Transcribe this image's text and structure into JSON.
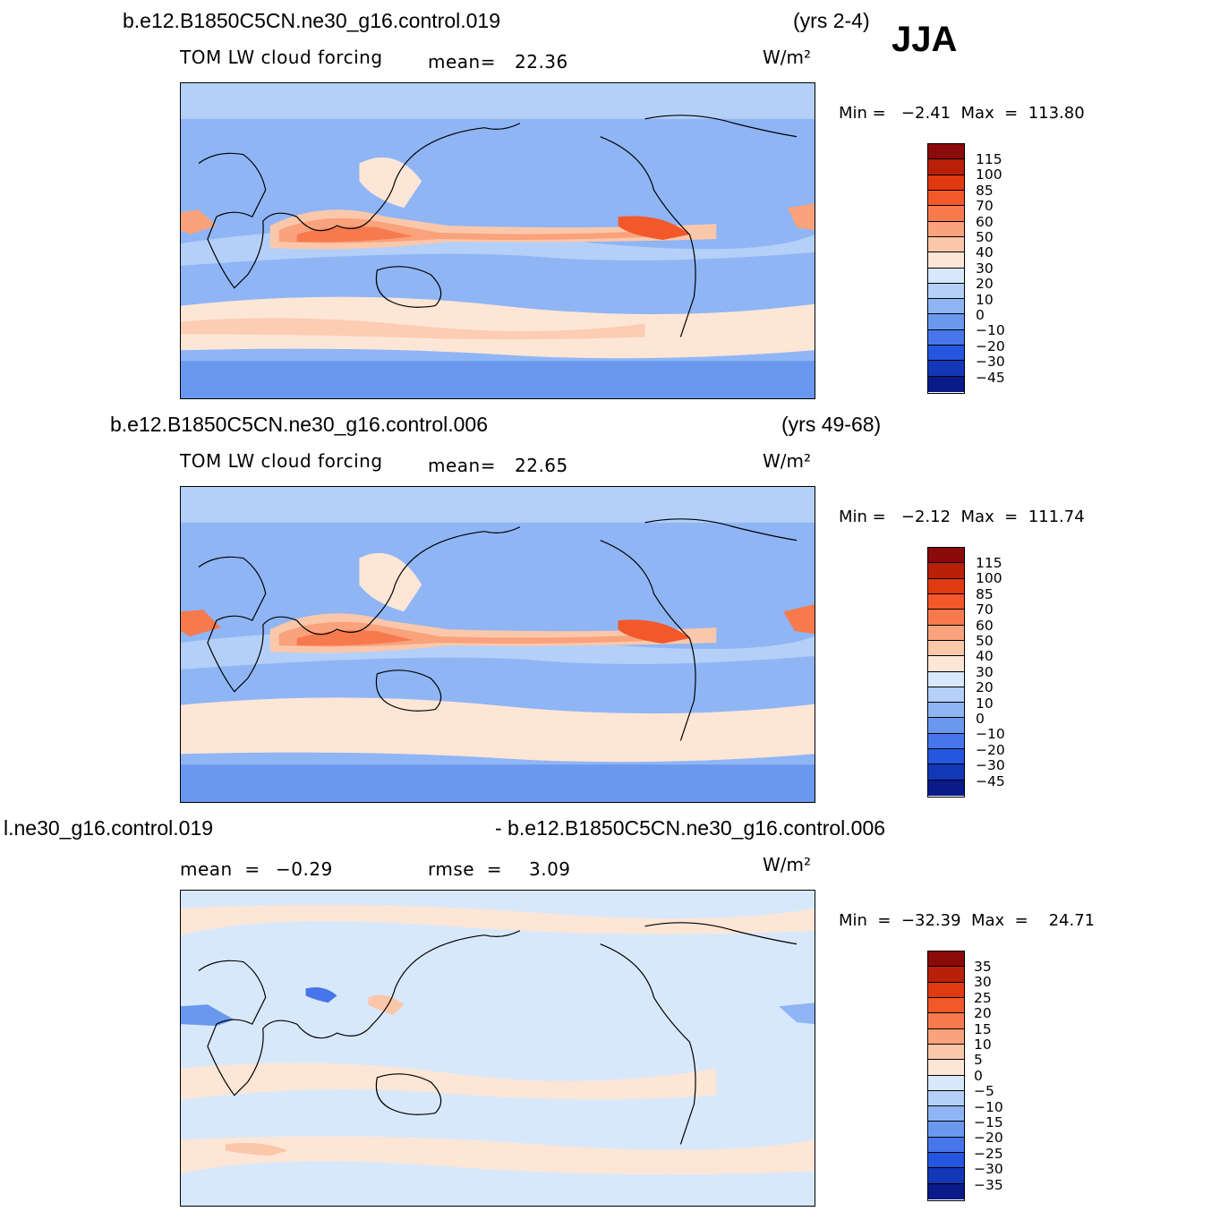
{
  "season": "JJA",
  "panels": [
    {
      "id": "test",
      "title": "b.e12.B1850C5CN.ne30_g16.control.019",
      "years": "(yrs 2-4)",
      "variable": "TOM LW cloud forcing",
      "stat_label": "mean=",
      "stat_value": "22.36",
      "units": "W/m²",
      "minmax": "Min =   −2.41  Max  =  113.80",
      "colorbar_labels": [
        "115",
        "100",
        "85",
        "70",
        "60",
        "50",
        "40",
        "30",
        "20",
        "10",
        "0",
        "−10",
        "−20",
        "−30",
        "−45"
      ],
      "colors": [
        "#8b0a0a",
        "#b82008",
        "#e03a10",
        "#f2582a",
        "#f77a4e",
        "#f9a27c",
        "#fbc7aa",
        "#fde6d6",
        "#d8e8fb",
        "#b4d0f8",
        "#8fb5f5",
        "#6a98ef",
        "#4676ea",
        "#2456e0",
        "#1238b8",
        "#0a1a88"
      ]
    },
    {
      "id": "control",
      "title": "b.e12.B1850C5CN.ne30_g16.control.006",
      "years": "(yrs 49-68)",
      "variable": "TOM LW cloud forcing",
      "stat_label": "mean=",
      "stat_value": "22.65",
      "units": "W/m²",
      "minmax": "Min =   −2.12  Max  =  111.74",
      "colorbar_labels": [
        "115",
        "100",
        "85",
        "70",
        "60",
        "50",
        "40",
        "30",
        "20",
        "10",
        "0",
        "−10",
        "−20",
        "−30",
        "−45"
      ],
      "colors": [
        "#8b0a0a",
        "#b82008",
        "#e03a10",
        "#f2582a",
        "#f77a4e",
        "#f9a27c",
        "#fbc7aa",
        "#fde6d6",
        "#d8e8fb",
        "#b4d0f8",
        "#8fb5f5",
        "#6a98ef",
        "#4676ea",
        "#2456e0",
        "#1238b8",
        "#0a1a88"
      ]
    },
    {
      "id": "difference",
      "title_left": "l.ne30_g16.control.019",
      "title_right": "- b.e12.B1850C5CN.ne30_g16.control.006",
      "stat1_label": "mean  =",
      "stat1_value": "−0.29",
      "stat2_label": "rmse  =",
      "stat2_value": "3.09",
      "units": "W/m²",
      "minmax": "Min  =  −32.39  Max  =    24.71",
      "colorbar_labels": [
        "35",
        "30",
        "25",
        "20",
        "15",
        "10",
        "5",
        "0",
        "−5",
        "−10",
        "−15",
        "−20",
        "−25",
        "−30",
        "−35"
      ],
      "colors": [
        "#8b0a0a",
        "#b82008",
        "#e03a10",
        "#f2582a",
        "#f77a4e",
        "#f9a27c",
        "#fbc7aa",
        "#fde6d6",
        "#d8e8fb",
        "#b4d0f8",
        "#8fb5f5",
        "#6a98ef",
        "#4676ea",
        "#2456e0",
        "#1238b8",
        "#0a1a88"
      ]
    }
  ]
}
